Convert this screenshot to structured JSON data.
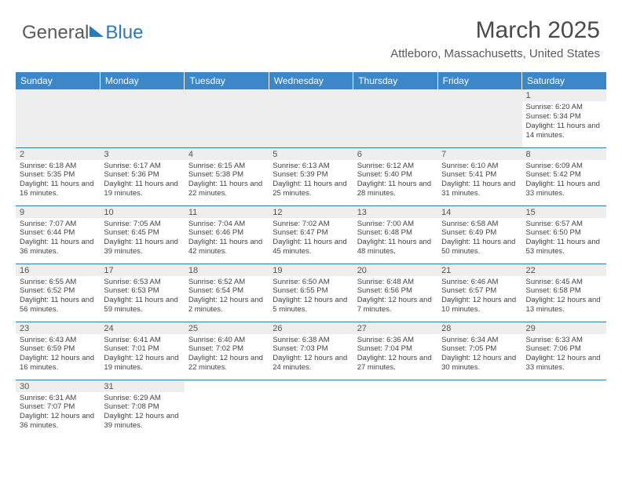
{
  "logo": {
    "general": "General",
    "blue": "Blue"
  },
  "header": {
    "month_title": "March 2025",
    "location": "Attleboro, Massachusetts, United States"
  },
  "colors": {
    "header_bg": "#3b87c8",
    "header_fg": "#ffffff",
    "cell_border": "#2a7ab8",
    "daynum_bg": "#eeeeee",
    "text": "#444444",
    "logo_gray": "#5a5a5a",
    "logo_blue": "#2a7ab8"
  },
  "day_headers": [
    "Sunday",
    "Monday",
    "Tuesday",
    "Wednesday",
    "Thursday",
    "Friday",
    "Saturday"
  ],
  "weeks": [
    [
      {
        "empty": true
      },
      {
        "empty": true
      },
      {
        "empty": true
      },
      {
        "empty": true
      },
      {
        "empty": true
      },
      {
        "empty": true
      },
      {
        "num": "1",
        "sunrise": "6:20 AM",
        "sunset": "5:34 PM",
        "daylight": "11 hours and 14 minutes."
      }
    ],
    [
      {
        "num": "2",
        "sunrise": "6:18 AM",
        "sunset": "5:35 PM",
        "daylight": "11 hours and 16 minutes."
      },
      {
        "num": "3",
        "sunrise": "6:17 AM",
        "sunset": "5:36 PM",
        "daylight": "11 hours and 19 minutes."
      },
      {
        "num": "4",
        "sunrise": "6:15 AM",
        "sunset": "5:38 PM",
        "daylight": "11 hours and 22 minutes."
      },
      {
        "num": "5",
        "sunrise": "6:13 AM",
        "sunset": "5:39 PM",
        "daylight": "11 hours and 25 minutes."
      },
      {
        "num": "6",
        "sunrise": "6:12 AM",
        "sunset": "5:40 PM",
        "daylight": "11 hours and 28 minutes."
      },
      {
        "num": "7",
        "sunrise": "6:10 AM",
        "sunset": "5:41 PM",
        "daylight": "11 hours and 31 minutes."
      },
      {
        "num": "8",
        "sunrise": "6:09 AM",
        "sunset": "5:42 PM",
        "daylight": "11 hours and 33 minutes."
      }
    ],
    [
      {
        "num": "9",
        "sunrise": "7:07 AM",
        "sunset": "6:44 PM",
        "daylight": "11 hours and 36 minutes."
      },
      {
        "num": "10",
        "sunrise": "7:05 AM",
        "sunset": "6:45 PM",
        "daylight": "11 hours and 39 minutes."
      },
      {
        "num": "11",
        "sunrise": "7:04 AM",
        "sunset": "6:46 PM",
        "daylight": "11 hours and 42 minutes."
      },
      {
        "num": "12",
        "sunrise": "7:02 AM",
        "sunset": "6:47 PM",
        "daylight": "11 hours and 45 minutes."
      },
      {
        "num": "13",
        "sunrise": "7:00 AM",
        "sunset": "6:48 PM",
        "daylight": "11 hours and 48 minutes."
      },
      {
        "num": "14",
        "sunrise": "6:58 AM",
        "sunset": "6:49 PM",
        "daylight": "11 hours and 50 minutes."
      },
      {
        "num": "15",
        "sunrise": "6:57 AM",
        "sunset": "6:50 PM",
        "daylight": "11 hours and 53 minutes."
      }
    ],
    [
      {
        "num": "16",
        "sunrise": "6:55 AM",
        "sunset": "6:52 PM",
        "daylight": "11 hours and 56 minutes."
      },
      {
        "num": "17",
        "sunrise": "6:53 AM",
        "sunset": "6:53 PM",
        "daylight": "11 hours and 59 minutes."
      },
      {
        "num": "18",
        "sunrise": "6:52 AM",
        "sunset": "6:54 PM",
        "daylight": "12 hours and 2 minutes."
      },
      {
        "num": "19",
        "sunrise": "6:50 AM",
        "sunset": "6:55 PM",
        "daylight": "12 hours and 5 minutes."
      },
      {
        "num": "20",
        "sunrise": "6:48 AM",
        "sunset": "6:56 PM",
        "daylight": "12 hours and 7 minutes."
      },
      {
        "num": "21",
        "sunrise": "6:46 AM",
        "sunset": "6:57 PM",
        "daylight": "12 hours and 10 minutes."
      },
      {
        "num": "22",
        "sunrise": "6:45 AM",
        "sunset": "6:58 PM",
        "daylight": "12 hours and 13 minutes."
      }
    ],
    [
      {
        "num": "23",
        "sunrise": "6:43 AM",
        "sunset": "6:59 PM",
        "daylight": "12 hours and 16 minutes."
      },
      {
        "num": "24",
        "sunrise": "6:41 AM",
        "sunset": "7:01 PM",
        "daylight": "12 hours and 19 minutes."
      },
      {
        "num": "25",
        "sunrise": "6:40 AM",
        "sunset": "7:02 PM",
        "daylight": "12 hours and 22 minutes."
      },
      {
        "num": "26",
        "sunrise": "6:38 AM",
        "sunset": "7:03 PM",
        "daylight": "12 hours and 24 minutes."
      },
      {
        "num": "27",
        "sunrise": "6:36 AM",
        "sunset": "7:04 PM",
        "daylight": "12 hours and 27 minutes."
      },
      {
        "num": "28",
        "sunrise": "6:34 AM",
        "sunset": "7:05 PM",
        "daylight": "12 hours and 30 minutes."
      },
      {
        "num": "29",
        "sunrise": "6:33 AM",
        "sunset": "7:06 PM",
        "daylight": "12 hours and 33 minutes."
      }
    ],
    [
      {
        "num": "30",
        "sunrise": "6:31 AM",
        "sunset": "7:07 PM",
        "daylight": "12 hours and 36 minutes."
      },
      {
        "num": "31",
        "sunrise": "6:29 AM",
        "sunset": "7:08 PM",
        "daylight": "12 hours and 39 minutes."
      },
      {
        "empty": true
      },
      {
        "empty": true
      },
      {
        "empty": true
      },
      {
        "empty": true
      },
      {
        "empty": true
      }
    ]
  ],
  "labels": {
    "sunrise": "Sunrise:",
    "sunset": "Sunset:",
    "daylight": "Daylight:"
  }
}
